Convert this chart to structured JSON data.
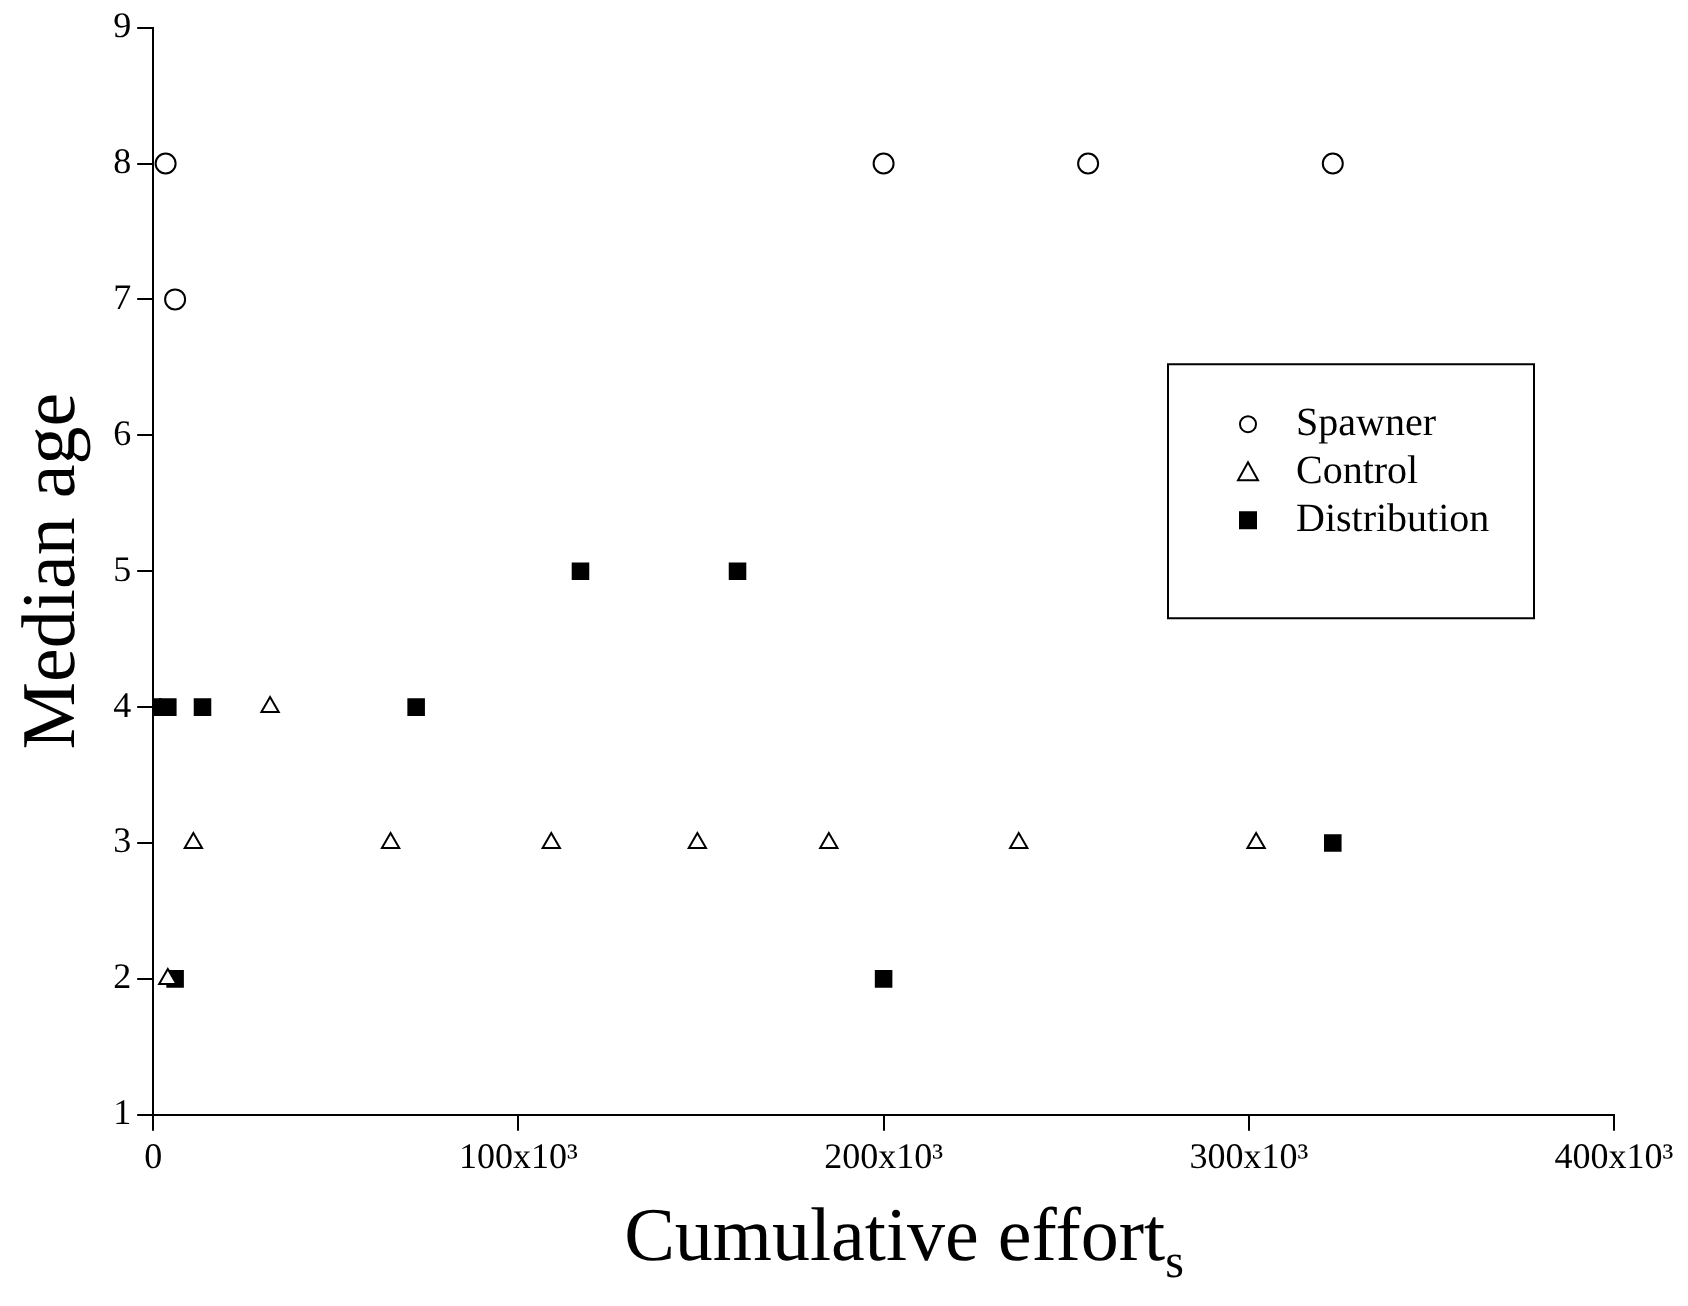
{
  "chart_data": {
    "type": "scatter",
    "xlabel": "Cumulative effort$_{s}$",
    "ylabel": "Median age",
    "xlim": [
      0,
      400000
    ],
    "xticks": [
      0,
      {
        "value": 100000,
        "label": "100x10³"
      },
      {
        "value": 200000,
        "label": "200x10³"
      },
      {
        "value": 300000,
        "label": "300x10³"
      },
      {
        "value": 400000,
        "label": "400x10³"
      }
    ],
    "ylim": [
      1,
      9
    ],
    "yticks": [
      1,
      2,
      3,
      4,
      5,
      6,
      7,
      8,
      9
    ],
    "grid": false,
    "legend": "right",
    "series": [
      {
        "name": "Spawner",
        "color": "#000000",
        "marker": "circle",
        "x": [
          3400,
          6000,
          200000,
          256000,
          323000
        ],
        "values": [
          8,
          7,
          8,
          8,
          8
        ]
      },
      {
        "name": "Control",
        "color": "#000000",
        "marker": "triangle",
        "x": [
          4000,
          11000,
          32000,
          65000,
          109000,
          149000,
          185000,
          237000,
          302000
        ],
        "values": [
          2,
          3,
          4,
          3,
          3,
          3,
          3,
          3,
          3
        ]
      },
      {
        "name": "Distribution",
        "color": "#000000",
        "marker": "square",
        "x": [
          0,
          4000,
          13500,
          72000,
          6000,
          117000,
          160000,
          200000,
          323000
        ],
        "values": [
          4,
          4,
          4,
          4,
          2,
          5,
          5,
          2,
          3
        ]
      }
    ]
  }
}
